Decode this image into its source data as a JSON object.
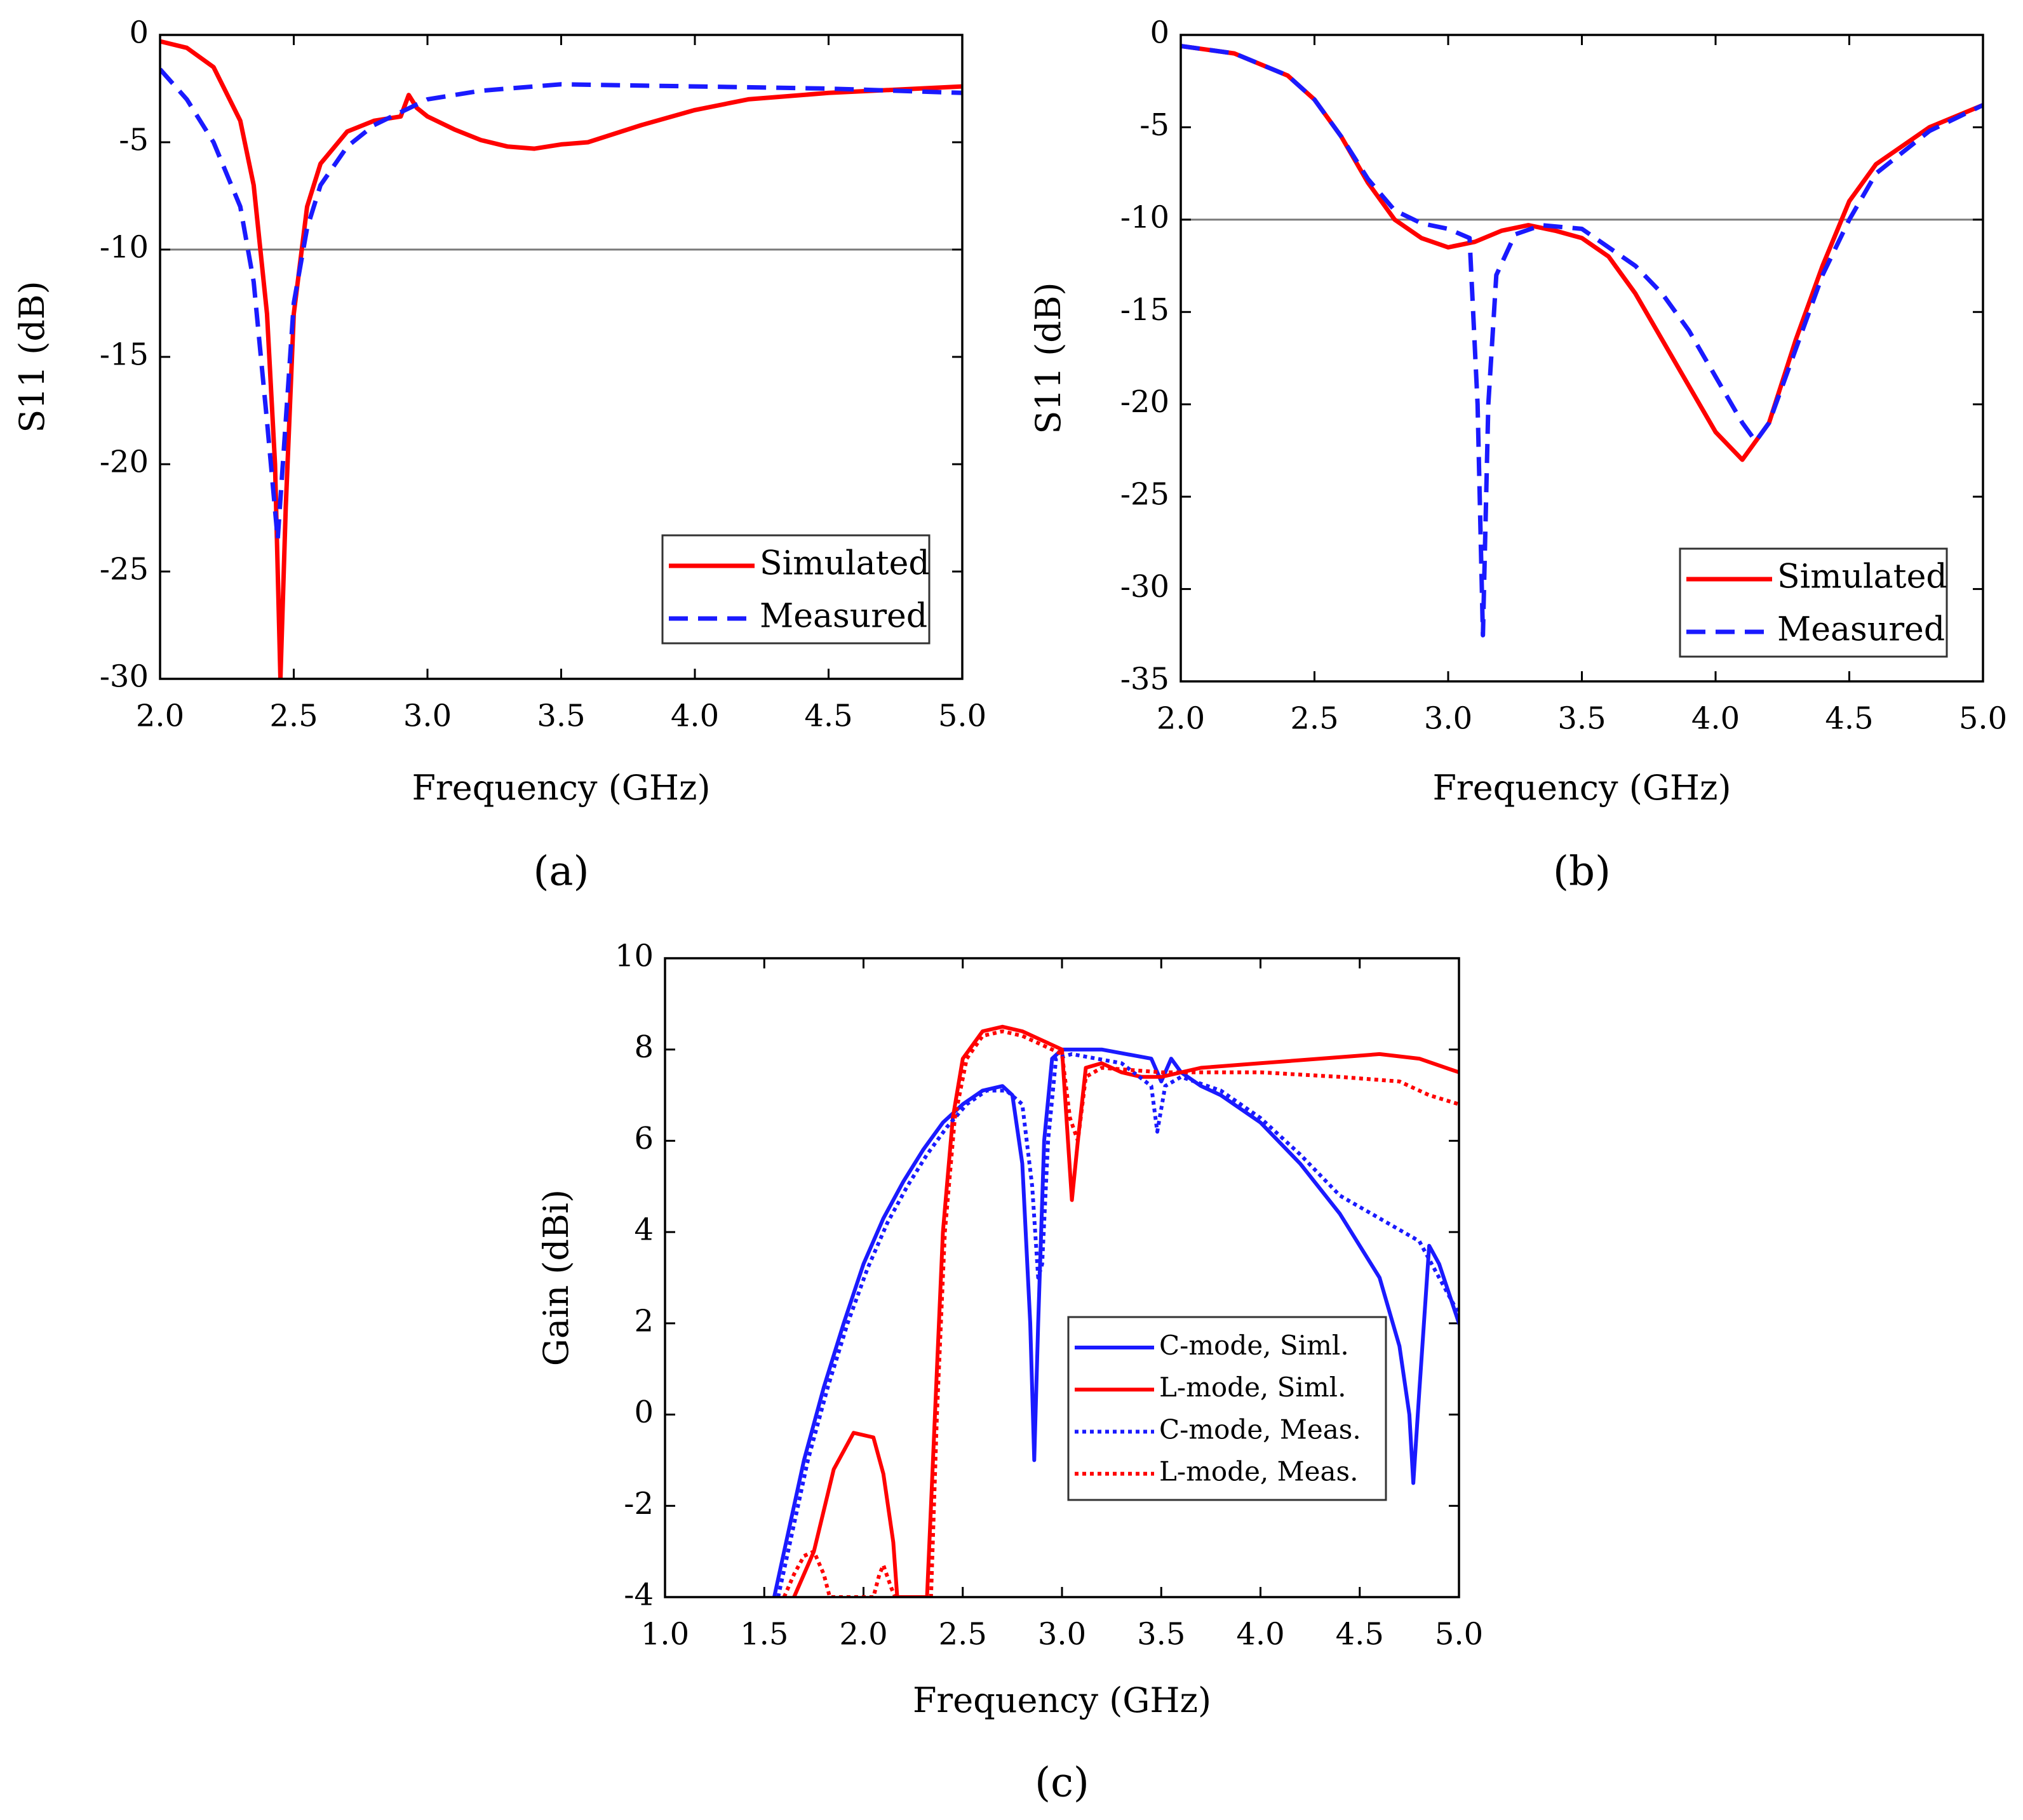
{
  "chart_data": [
    {
      "id": "a",
      "type": "line",
      "panel_label": "(a)",
      "title": "",
      "xlabel": "Frequency (GHz)",
      "ylabel": "S11 (dB)",
      "xlim": [
        2.0,
        5.0
      ],
      "ylim": [
        -30,
        0
      ],
      "x_ticks": [
        "2.0",
        "2.5",
        "3.0",
        "3.5",
        "4.0",
        "4.5",
        "5.0"
      ],
      "y_ticks": [
        "0",
        "-5",
        "-10",
        "-15",
        "-20",
        "-25",
        "-30"
      ],
      "reference_line": -10,
      "legend_position": "bottom-right",
      "series": [
        {
          "name": "Simulated",
          "color": "#ff0000",
          "style": "solid",
          "points": [
            [
              2.0,
              -0.3
            ],
            [
              2.1,
              -0.6
            ],
            [
              2.2,
              -1.5
            ],
            [
              2.3,
              -4.0
            ],
            [
              2.35,
              -7.0
            ],
            [
              2.4,
              -13.0
            ],
            [
              2.43,
              -20.0
            ],
            [
              2.45,
              -30.0
            ],
            [
              2.47,
              -22.0
            ],
            [
              2.5,
              -13.0
            ],
            [
              2.55,
              -8.0
            ],
            [
              2.6,
              -6.0
            ],
            [
              2.7,
              -4.5
            ],
            [
              2.8,
              -4.0
            ],
            [
              2.9,
              -3.8
            ],
            [
              2.93,
              -2.8
            ],
            [
              2.96,
              -3.4
            ],
            [
              3.0,
              -3.8
            ],
            [
              3.1,
              -4.4
            ],
            [
              3.2,
              -4.9
            ],
            [
              3.3,
              -5.2
            ],
            [
              3.4,
              -5.3
            ],
            [
              3.5,
              -5.1
            ],
            [
              3.6,
              -5.0
            ],
            [
              3.8,
              -4.2
            ],
            [
              4.0,
              -3.5
            ],
            [
              4.2,
              -3.0
            ],
            [
              4.5,
              -2.7
            ],
            [
              5.0,
              -2.4
            ]
          ]
        },
        {
          "name": "Measured",
          "color": "#1a1aff",
          "style": "dashed",
          "points": [
            [
              2.0,
              -1.6
            ],
            [
              2.1,
              -3.0
            ],
            [
              2.2,
              -5.0
            ],
            [
              2.3,
              -8.0
            ],
            [
              2.35,
              -11.5
            ],
            [
              2.4,
              -18.0
            ],
            [
              2.44,
              -23.5
            ],
            [
              2.47,
              -18.0
            ],
            [
              2.5,
              -12.5
            ],
            [
              2.55,
              -9.0
            ],
            [
              2.6,
              -7.0
            ],
            [
              2.7,
              -5.2
            ],
            [
              2.8,
              -4.2
            ],
            [
              2.9,
              -3.6
            ],
            [
              3.0,
              -3.0
            ],
            [
              3.2,
              -2.6
            ],
            [
              3.5,
              -2.3
            ],
            [
              4.0,
              -2.4
            ],
            [
              4.5,
              -2.5
            ],
            [
              5.0,
              -2.7
            ]
          ]
        }
      ]
    },
    {
      "id": "b",
      "type": "line",
      "panel_label": "(b)",
      "title": "",
      "xlabel": "Frequency (GHz)",
      "ylabel": "S11 (dB)",
      "xlim": [
        2.0,
        5.0
      ],
      "ylim": [
        -35,
        0
      ],
      "x_ticks": [
        "2.0",
        "2.5",
        "3.0",
        "3.5",
        "4.0",
        "4.5",
        "5.0"
      ],
      "y_ticks": [
        "0",
        "-5",
        "-10",
        "-15",
        "-20",
        "-25",
        "-30",
        "-35"
      ],
      "reference_line": -10,
      "legend_position": "bottom-right",
      "series": [
        {
          "name": "Simulated",
          "color": "#ff0000",
          "style": "solid",
          "points": [
            [
              2.0,
              -0.6
            ],
            [
              2.2,
              -1.0
            ],
            [
              2.4,
              -2.2
            ],
            [
              2.5,
              -3.5
            ],
            [
              2.6,
              -5.5
            ],
            [
              2.7,
              -8.0
            ],
            [
              2.8,
              -10.0
            ],
            [
              2.9,
              -11.0
            ],
            [
              3.0,
              -11.5
            ],
            [
              3.1,
              -11.2
            ],
            [
              3.2,
              -10.6
            ],
            [
              3.3,
              -10.3
            ],
            [
              3.4,
              -10.6
            ],
            [
              3.5,
              -11.0
            ],
            [
              3.6,
              -12.0
            ],
            [
              3.7,
              -14.0
            ],
            [
              3.8,
              -16.5
            ],
            [
              3.9,
              -19.0
            ],
            [
              4.0,
              -21.5
            ],
            [
              4.1,
              -23.0
            ],
            [
              4.2,
              -21.0
            ],
            [
              4.3,
              -16.5
            ],
            [
              4.4,
              -12.5
            ],
            [
              4.5,
              -9.0
            ],
            [
              4.6,
              -7.0
            ],
            [
              4.8,
              -5.0
            ],
            [
              5.0,
              -3.8
            ]
          ]
        },
        {
          "name": "Measured",
          "color": "#1a1aff",
          "style": "dashed",
          "points": [
            [
              2.0,
              -0.6
            ],
            [
              2.2,
              -1.0
            ],
            [
              2.4,
              -2.2
            ],
            [
              2.5,
              -3.5
            ],
            [
              2.6,
              -5.5
            ],
            [
              2.7,
              -7.8
            ],
            [
              2.8,
              -9.5
            ],
            [
              2.9,
              -10.2
            ],
            [
              3.0,
              -10.5
            ],
            [
              3.08,
              -11.0
            ],
            [
              3.11,
              -20.0
            ],
            [
              3.13,
              -32.5
            ],
            [
              3.15,
              -20.0
            ],
            [
              3.18,
              -13.0
            ],
            [
              3.25,
              -10.8
            ],
            [
              3.35,
              -10.3
            ],
            [
              3.5,
              -10.5
            ],
            [
              3.6,
              -11.5
            ],
            [
              3.7,
              -12.5
            ],
            [
              3.8,
              -14.0
            ],
            [
              3.9,
              -16.0
            ],
            [
              4.0,
              -18.5
            ],
            [
              4.1,
              -21.0
            ],
            [
              4.15,
              -22.0
            ],
            [
              4.2,
              -21.0
            ],
            [
              4.3,
              -17.0
            ],
            [
              4.4,
              -13.0
            ],
            [
              4.5,
              -10.0
            ],
            [
              4.6,
              -7.5
            ],
            [
              4.8,
              -5.2
            ],
            [
              5.0,
              -3.8
            ]
          ]
        }
      ]
    },
    {
      "id": "c",
      "type": "line",
      "panel_label": "(c)",
      "title": "",
      "xlabel": "Frequency (GHz)",
      "ylabel": "Gain (dBi)",
      "xlim": [
        1.0,
        5.0
      ],
      "ylim": [
        -4,
        10
      ],
      "x_ticks": [
        "1.0",
        "1.5",
        "2.0",
        "2.5",
        "3.0",
        "3.5",
        "4.0",
        "4.5",
        "5.0"
      ],
      "y_ticks": [
        "10",
        "8",
        "6",
        "4",
        "2",
        "0",
        "-2",
        "-4"
      ],
      "legend_position": "lower-right",
      "series": [
        {
          "name": "C-mode, Siml.",
          "color": "#1a1aff",
          "style": "solid",
          "points": [
            [
              1.55,
              -4.0
            ],
            [
              1.6,
              -3.0
            ],
            [
              1.7,
              -1.0
            ],
            [
              1.8,
              0.6
            ],
            [
              1.9,
              2.0
            ],
            [
              2.0,
              3.3
            ],
            [
              2.1,
              4.3
            ],
            [
              2.2,
              5.1
            ],
            [
              2.3,
              5.8
            ],
            [
              2.4,
              6.4
            ],
            [
              2.5,
              6.8
            ],
            [
              2.6,
              7.1
            ],
            [
              2.7,
              7.2
            ],
            [
              2.75,
              7.0
            ],
            [
              2.8,
              5.5
            ],
            [
              2.84,
              2.0
            ],
            [
              2.86,
              -1.0
            ],
            [
              2.88,
              2.0
            ],
            [
              2.91,
              6.0
            ],
            [
              2.95,
              7.8
            ],
            [
              3.0,
              8.0
            ],
            [
              3.2,
              8.0
            ],
            [
              3.45,
              7.8
            ],
            [
              3.5,
              7.3
            ],
            [
              3.55,
              7.8
            ],
            [
              3.6,
              7.5
            ],
            [
              3.7,
              7.2
            ],
            [
              3.8,
              7.0
            ],
            [
              4.0,
              6.4
            ],
            [
              4.2,
              5.5
            ],
            [
              4.4,
              4.4
            ],
            [
              4.6,
              3.0
            ],
            [
              4.7,
              1.5
            ],
            [
              4.75,
              0.0
            ],
            [
              4.77,
              -1.5
            ],
            [
              4.8,
              0.5
            ],
            [
              4.85,
              3.7
            ],
            [
              4.9,
              3.3
            ],
            [
              5.0,
              2.0
            ]
          ]
        },
        {
          "name": "L-mode, Siml.",
          "color": "#ff0000",
          "style": "solid",
          "points": [
            [
              1.65,
              -4.0
            ],
            [
              1.75,
              -3.0
            ],
            [
              1.85,
              -1.2
            ],
            [
              1.95,
              -0.4
            ],
            [
              2.05,
              -0.5
            ],
            [
              2.1,
              -1.3
            ],
            [
              2.15,
              -2.8
            ],
            [
              2.17,
              -4.0
            ],
            [
              2.32,
              -4.0
            ],
            [
              2.36,
              0.0
            ],
            [
              2.4,
              4.0
            ],
            [
              2.45,
              6.5
            ],
            [
              2.5,
              7.8
            ],
            [
              2.6,
              8.4
            ],
            [
              2.7,
              8.5
            ],
            [
              2.8,
              8.4
            ],
            [
              2.9,
              8.2
            ],
            [
              3.0,
              8.0
            ],
            [
              3.03,
              6.0
            ],
            [
              3.05,
              4.7
            ],
            [
              3.08,
              6.0
            ],
            [
              3.12,
              7.6
            ],
            [
              3.2,
              7.7
            ],
            [
              3.3,
              7.5
            ],
            [
              3.4,
              7.4
            ],
            [
              3.5,
              7.4
            ],
            [
              3.7,
              7.6
            ],
            [
              4.0,
              7.7
            ],
            [
              4.3,
              7.8
            ],
            [
              4.6,
              7.9
            ],
            [
              4.8,
              7.8
            ],
            [
              5.0,
              7.5
            ]
          ]
        },
        {
          "name": "C-mode, Meas.",
          "color": "#1a1aff",
          "style": "dotted",
          "points": [
            [
              1.57,
              -4.0
            ],
            [
              1.62,
              -3.0
            ],
            [
              1.72,
              -1.0
            ],
            [
              1.82,
              0.6
            ],
            [
              1.92,
              2.0
            ],
            [
              2.02,
              3.2
            ],
            [
              2.12,
              4.2
            ],
            [
              2.22,
              5.0
            ],
            [
              2.32,
              5.7
            ],
            [
              2.42,
              6.3
            ],
            [
              2.52,
              6.8
            ],
            [
              2.62,
              7.1
            ],
            [
              2.72,
              7.1
            ],
            [
              2.8,
              6.8
            ],
            [
              2.85,
              5.0
            ],
            [
              2.88,
              3.0
            ],
            [
              2.9,
              3.3
            ],
            [
              2.93,
              6.0
            ],
            [
              2.97,
              7.8
            ],
            [
              3.05,
              7.9
            ],
            [
              3.3,
              7.7
            ],
            [
              3.45,
              7.2
            ],
            [
              3.48,
              6.2
            ],
            [
              3.52,
              7.2
            ],
            [
              3.6,
              7.4
            ],
            [
              3.8,
              7.1
            ],
            [
              4.0,
              6.5
            ],
            [
              4.2,
              5.7
            ],
            [
              4.4,
              4.8
            ],
            [
              4.6,
              4.3
            ],
            [
              4.8,
              3.8
            ],
            [
              4.9,
              3.0
            ],
            [
              5.0,
              2.2
            ]
          ]
        },
        {
          "name": "L-mode, Meas.",
          "color": "#ff0000",
          "style": "dotted",
          "points": [
            [
              1.6,
              -4.0
            ],
            [
              1.65,
              -3.5
            ],
            [
              1.7,
              -3.1
            ],
            [
              1.75,
              -3.0
            ],
            [
              1.8,
              -3.5
            ],
            [
              1.83,
              -4.0
            ],
            [
              2.05,
              -4.0
            ],
            [
              2.08,
              -3.5
            ],
            [
              2.1,
              -3.3
            ],
            [
              2.14,
              -3.8
            ],
            [
              2.16,
              -4.0
            ],
            [
              2.34,
              -4.0
            ],
            [
              2.37,
              0.0
            ],
            [
              2.41,
              4.0
            ],
            [
              2.46,
              6.5
            ],
            [
              2.52,
              7.8
            ],
            [
              2.6,
              8.3
            ],
            [
              2.7,
              8.4
            ],
            [
              2.8,
              8.3
            ],
            [
              2.9,
              8.1
            ],
            [
              3.0,
              7.9
            ],
            [
              3.04,
              6.5
            ],
            [
              3.08,
              6.0
            ],
            [
              3.12,
              7.4
            ],
            [
              3.2,
              7.6
            ],
            [
              3.5,
              7.5
            ],
            [
              4.0,
              7.5
            ],
            [
              4.4,
              7.4
            ],
            [
              4.7,
              7.3
            ],
            [
              4.85,
              7.0
            ],
            [
              5.0,
              6.8
            ]
          ]
        }
      ]
    }
  ]
}
